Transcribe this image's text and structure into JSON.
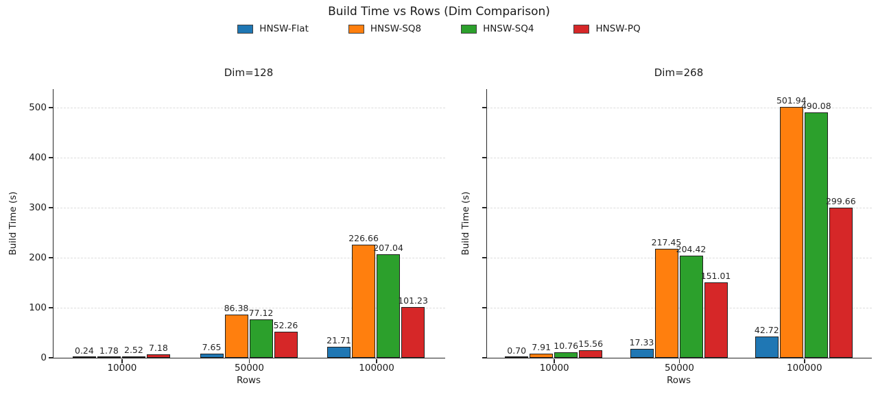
{
  "figure": {
    "title": "Build Time vs Rows (Dim Comparison)"
  },
  "legend": {
    "items": [
      {
        "label": "HNSW-Flat",
        "color": "#1f77b4"
      },
      {
        "label": "HNSW-SQ8",
        "color": "#ff7f0e"
      },
      {
        "label": "HNSW-SQ4",
        "color": "#2ca02c"
      },
      {
        "label": "HNSW-PQ",
        "color": "#d62728"
      }
    ]
  },
  "chart_data": [
    {
      "type": "bar",
      "title": "Dim=128",
      "xlabel": "Rows",
      "ylabel": "Build Time (s)",
      "categories": [
        "10000",
        "50000",
        "100000"
      ],
      "series": [
        {
          "name": "HNSW-Flat",
          "color": "#1f77b4",
          "values": [
            0.24,
            7.65,
            21.71
          ]
        },
        {
          "name": "HNSW-SQ8",
          "color": "#ff7f0e",
          "values": [
            1.78,
            86.38,
            226.66
          ]
        },
        {
          "name": "HNSW-SQ4",
          "color": "#2ca02c",
          "values": [
            2.52,
            77.12,
            207.04
          ]
        },
        {
          "name": "HNSW-PQ",
          "color": "#d62728",
          "values": [
            7.18,
            52.26,
            101.23
          ]
        }
      ],
      "yticks": [
        0,
        100,
        200,
        300,
        400,
        500
      ],
      "ylim": [
        0,
        537
      ],
      "grid": "horizontal-dashed",
      "ytick_labels_visible": true,
      "legend_position": "top-center-shared"
    },
    {
      "type": "bar",
      "title": "Dim=268",
      "xlabel": "Rows",
      "ylabel": "Build Time (s)",
      "categories": [
        "10000",
        "50000",
        "100000"
      ],
      "series": [
        {
          "name": "HNSW-Flat",
          "color": "#1f77b4",
          "values": [
            0.7,
            17.33,
            42.72
          ]
        },
        {
          "name": "HNSW-SQ8",
          "color": "#ff7f0e",
          "values": [
            7.91,
            217.45,
            501.94
          ]
        },
        {
          "name": "HNSW-SQ4",
          "color": "#2ca02c",
          "values": [
            10.76,
            204.42,
            490.08
          ]
        },
        {
          "name": "HNSW-PQ",
          "color": "#d62728",
          "values": [
            15.56,
            151.01,
            299.66
          ]
        }
      ],
      "yticks": [
        0,
        100,
        200,
        300,
        400,
        500
      ],
      "ylim": [
        0,
        537
      ],
      "grid": "horizontal-dashed",
      "ytick_labels_visible": false,
      "legend_position": "top-center-shared"
    }
  ]
}
